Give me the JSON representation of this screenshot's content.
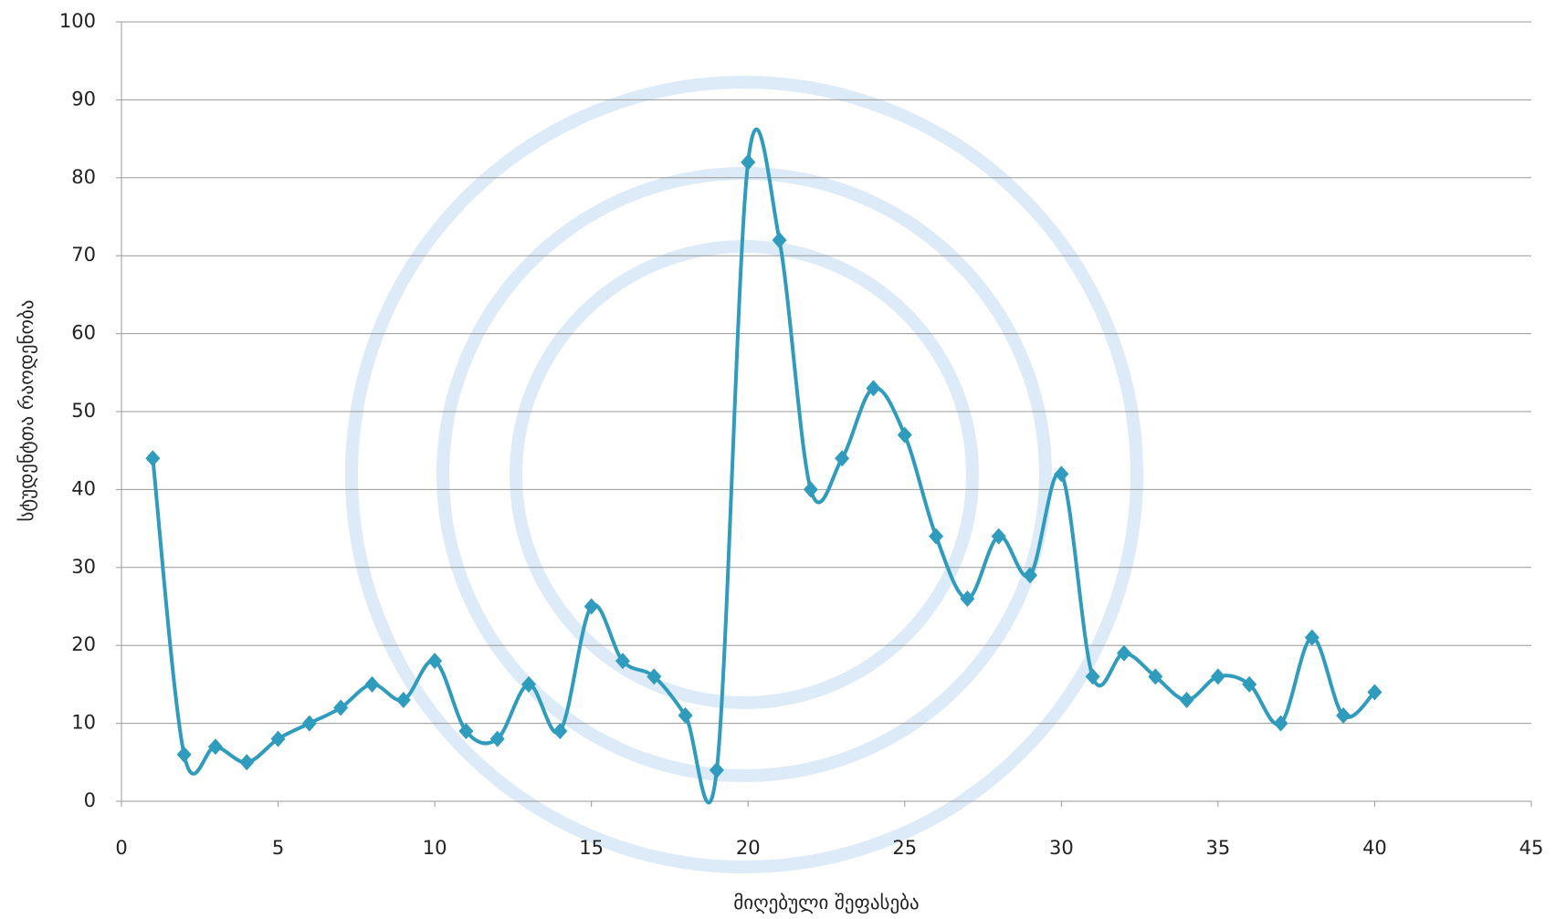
{
  "chart_data": {
    "type": "scatter",
    "smooth": true,
    "color": "#2f9bbd",
    "x_label": "მიღებული  შეფასება",
    "y_label": "სტუდენტთა  რაოდენობა",
    "x": [
      1,
      2,
      3,
      4,
      5,
      6,
      7,
      8,
      9,
      10,
      11,
      12,
      13,
      14,
      15,
      16,
      17,
      18,
      19,
      20,
      21,
      22,
      23,
      24,
      25,
      26,
      27,
      28,
      29,
      30,
      31,
      32,
      33,
      34,
      35,
      36,
      37,
      38,
      39,
      40
    ],
    "values": [
      44,
      6,
      7,
      5,
      8,
      10,
      12,
      15,
      13,
      18,
      9,
      8,
      15,
      9,
      25,
      18,
      16,
      11,
      4,
      82,
      72,
      40,
      44,
      53,
      47,
      34,
      26,
      34,
      29,
      42,
      16,
      19,
      16,
      13,
      16,
      15,
      10,
      21,
      11,
      14
    ],
    "xlim": [
      0,
      45
    ],
    "xticks": [
      0,
      5,
      10,
      15,
      20,
      25,
      30,
      35,
      40,
      45
    ],
    "ylim": [
      0,
      100
    ],
    "yticks": [
      0,
      10,
      20,
      30,
      40,
      50,
      60,
      70,
      80,
      90,
      100
    ],
    "grid": true
  }
}
